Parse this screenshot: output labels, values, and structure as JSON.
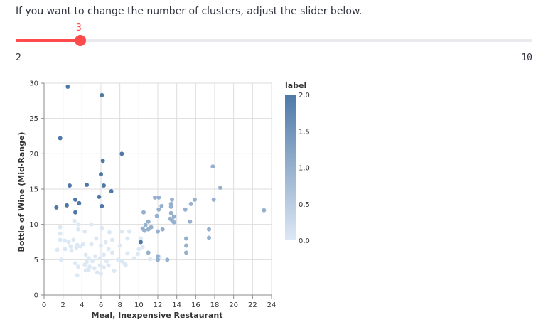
{
  "instruction": "If you want to change the number of clusters, adjust the slider below.",
  "slider": {
    "value": 3,
    "min": 2,
    "max": 10,
    "value_label": "3",
    "min_label": "2",
    "max_label": "10",
    "color": "#ff4b4b"
  },
  "chart_data": {
    "type": "scatter",
    "xlabel": "Meal, Inexpensive Restaurant",
    "ylabel": "Bottle of Wine (Mid-Range)",
    "xlim": [
      0,
      24
    ],
    "ylim": [
      0,
      30
    ],
    "xticks": [
      0,
      2,
      4,
      6,
      8,
      10,
      12,
      14,
      16,
      18,
      20,
      22,
      24
    ],
    "yticks": [
      0,
      5,
      10,
      15,
      20,
      25,
      30
    ],
    "grid": true,
    "color_scale": {
      "low": "#dde8f5",
      "high": "#4e79a7"
    },
    "legend": {
      "title": "label",
      "position": "right",
      "ticks": [
        "2.0",
        "1.5",
        "1.0",
        "0.5",
        "0.0"
      ],
      "min": 0,
      "max": 2
    },
    "series": [
      {
        "label": 2,
        "points": [
          [
            2.5,
            29.5
          ],
          [
            6.1,
            28.3
          ],
          [
            1.7,
            22.2
          ],
          [
            6.2,
            19
          ],
          [
            8.2,
            20
          ],
          [
            2.7,
            15.5
          ],
          [
            4.5,
            15.6
          ],
          [
            6,
            17.1
          ],
          [
            6.3,
            15.5
          ],
          [
            7.1,
            14.7
          ],
          [
            5.8,
            13.9
          ],
          [
            3.3,
            13.5
          ],
          [
            3.7,
            13
          ],
          [
            2.4,
            12.7
          ],
          [
            1.3,
            12.4
          ],
          [
            6.1,
            12.6
          ],
          [
            3.3,
            11.7
          ],
          [
            10.2,
            7.5
          ]
        ]
      },
      {
        "label": 1,
        "points": [
          [
            17.8,
            18.2
          ],
          [
            18.6,
            15.2
          ],
          [
            11.7,
            13.8
          ],
          [
            12.1,
            13.8
          ],
          [
            13.5,
            13.5
          ],
          [
            13.4,
            12.9
          ],
          [
            15.9,
            13.5
          ],
          [
            17.9,
            13.5
          ],
          [
            13.4,
            12.5
          ],
          [
            12.4,
            12.6
          ],
          [
            15.5,
            12.9
          ],
          [
            12.1,
            12.1
          ],
          [
            14.9,
            12.1
          ],
          [
            23.2,
            12
          ],
          [
            10.5,
            11.7
          ],
          [
            13.4,
            11.6
          ],
          [
            11.9,
            11.2
          ],
          [
            13.3,
            10.8
          ],
          [
            13.7,
            11.1
          ],
          [
            11,
            10.4
          ],
          [
            13.5,
            10.6
          ],
          [
            13.7,
            10.3
          ],
          [
            15.4,
            10.4
          ],
          [
            10.7,
            9.9
          ],
          [
            11.3,
            9.6
          ],
          [
            10.4,
            9.4
          ],
          [
            11,
            9.3
          ],
          [
            10.6,
            9.1
          ],
          [
            12.5,
            9.3
          ],
          [
            12,
            9
          ],
          [
            17.4,
            9.3
          ],
          [
            15,
            8
          ],
          [
            17.4,
            8.1
          ],
          [
            15,
            7
          ],
          [
            15,
            6
          ],
          [
            11,
            6
          ],
          [
            12,
            5.5
          ],
          [
            12,
            5
          ],
          [
            13,
            5
          ]
        ]
      },
      {
        "label": 0,
        "points": [
          [
            1.7,
            9.6
          ],
          [
            1.7,
            8.7
          ],
          [
            1.7,
            7.8
          ],
          [
            3.2,
            10.5
          ],
          [
            3.6,
            10
          ],
          [
            3.6,
            9.3
          ],
          [
            4.3,
            9
          ],
          [
            5,
            10
          ],
          [
            6.1,
            9.5
          ],
          [
            5.5,
            8
          ],
          [
            6,
            7
          ],
          [
            2.2,
            7.7
          ],
          [
            2.6,
            7.5
          ],
          [
            3.1,
            7.8
          ],
          [
            3.5,
            7.1
          ],
          [
            4.1,
            7.2
          ],
          [
            2.8,
            6.9
          ],
          [
            2.2,
            6.5
          ],
          [
            2.9,
            6.3
          ],
          [
            1.4,
            6.4
          ],
          [
            1.8,
            5
          ],
          [
            3.4,
            6.7
          ],
          [
            5,
            7.2
          ],
          [
            6.5,
            7.5
          ],
          [
            7.2,
            7.8
          ],
          [
            8,
            7
          ],
          [
            8.8,
            8
          ],
          [
            9,
            9
          ],
          [
            8.2,
            9
          ],
          [
            10.2,
            8
          ],
          [
            10,
            6.5
          ],
          [
            9.5,
            5.2
          ],
          [
            8.2,
            4.8
          ],
          [
            8.5,
            4.4
          ],
          [
            7.8,
            5
          ],
          [
            7.2,
            6
          ],
          [
            6.8,
            6.5
          ],
          [
            6.3,
            5.7
          ],
          [
            5.9,
            5.2
          ],
          [
            5.4,
            5.5
          ],
          [
            5.1,
            4.8
          ],
          [
            4.7,
            5.2
          ],
          [
            4.5,
            4.7
          ],
          [
            4.3,
            4.3
          ],
          [
            4.8,
            4
          ],
          [
            5.3,
            3.8
          ],
          [
            5.9,
            4.2
          ],
          [
            6.3,
            3.9
          ],
          [
            5.6,
            3.2
          ],
          [
            6,
            3
          ],
          [
            4.4,
            3.5
          ],
          [
            3.6,
            4
          ],
          [
            3.3,
            4.5
          ],
          [
            3.5,
            2.8
          ],
          [
            6.8,
            4.2
          ],
          [
            7.4,
            3.4
          ],
          [
            8.6,
            4.2
          ],
          [
            4.7,
            3.6
          ],
          [
            6.6,
            4.8
          ],
          [
            4.4,
            5.7
          ],
          [
            3.8,
            6.9
          ],
          [
            10.4,
            6.8
          ],
          [
            11.2,
            5.1
          ],
          [
            12.2,
            5.4
          ],
          [
            6.9,
            8.9
          ],
          [
            8.8,
            5.9
          ],
          [
            9.9,
            5.8
          ]
        ]
      }
    ]
  }
}
